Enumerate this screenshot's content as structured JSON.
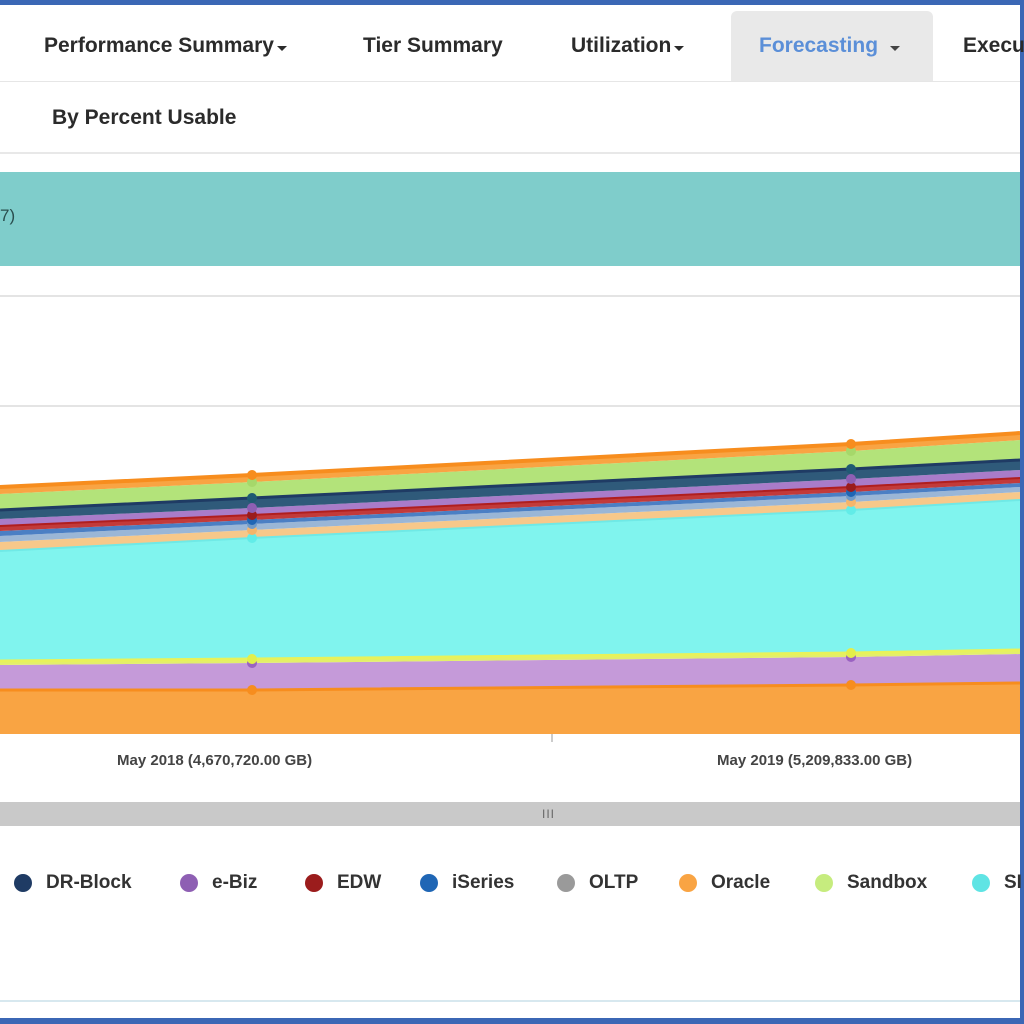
{
  "nav": {
    "items": [
      {
        "label": "Performance Summary",
        "dropdown": true
      },
      {
        "label": "Tier Summary",
        "dropdown": false
      },
      {
        "label": "Utilization",
        "dropdown": true
      },
      {
        "label": "Forecasting",
        "dropdown": true,
        "active": true
      },
      {
        "label": "Execu",
        "dropdown": false
      }
    ]
  },
  "subnav": {
    "label": "By Percent Usable"
  },
  "banner": {
    "text": "7)"
  },
  "chart_data": {
    "type": "area",
    "stacked": true,
    "x": [
      "May 2018 (4,670,720.00 GB)",
      "May 2019 (5,209,833.00 GB)"
    ],
    "xaxis_tick_labels": [
      "May 2018 (4,670,720.00 GB)",
      "May 2019 (5,209,833.00 GB)"
    ],
    "series": [
      {
        "name": "DR-Block",
        "color": "#1f3b64"
      },
      {
        "name": "e-Biz",
        "color": "#8e5fb3"
      },
      {
        "name": "EDW",
        "color": "#9b1c1c"
      },
      {
        "name": "iSeries",
        "color": "#1f66b5"
      },
      {
        "name": "OLTP",
        "color": "#9a9a9a"
      },
      {
        "name": "Oracle",
        "color": "#f9a443"
      },
      {
        "name": "Sandbox",
        "color": "#c6ec7e"
      },
      {
        "name": "SI",
        "color": "#5fe4e4"
      }
    ],
    "grid": true,
    "legend_position": "bottom"
  },
  "legend": {
    "items": [
      {
        "label": "DR-Block",
        "color": "#1f3b64"
      },
      {
        "label": "e-Biz",
        "color": "#8e5fb3"
      },
      {
        "label": "EDW",
        "color": "#9b1c1c"
      },
      {
        "label": "iSeries",
        "color": "#1f66b5"
      },
      {
        "label": "OLTP",
        "color": "#9a9a9a"
      },
      {
        "label": "Oracle",
        "color": "#f9a443"
      },
      {
        "label": "Sandbox",
        "color": "#c6ec7e"
      },
      {
        "label": "SI",
        "color": "#5fe4e4"
      }
    ]
  },
  "scrollbar": {
    "grip": "III"
  }
}
